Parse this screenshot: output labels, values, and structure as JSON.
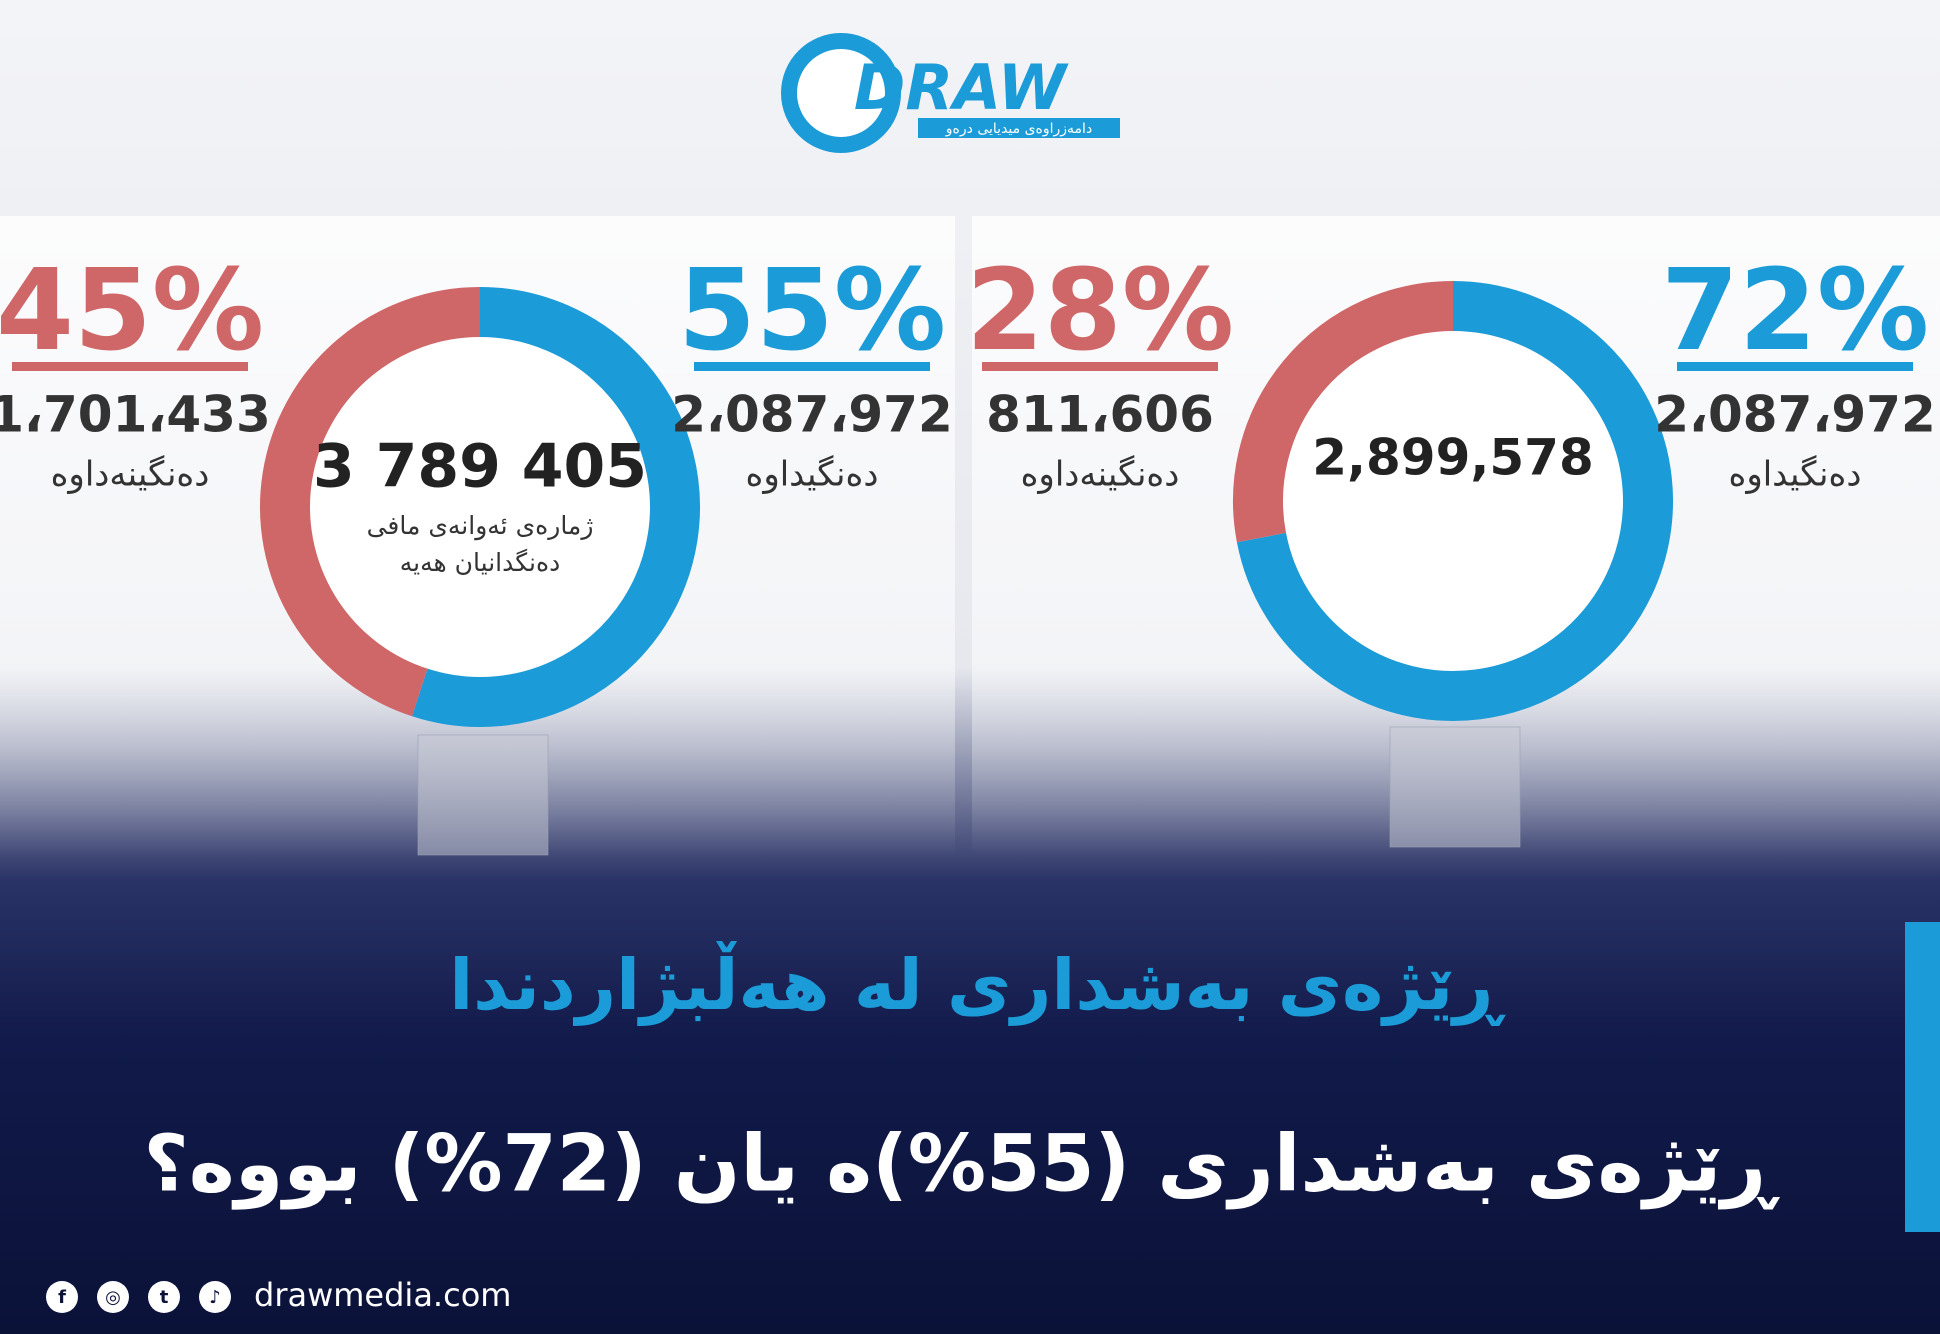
{
  "header": {
    "logo": "DRAW",
    "logo_subtitle": "دامەزراوەی میدیایی درەو"
  },
  "chart_data": [
    {
      "type": "pie",
      "donut": true,
      "categories": [
        "دەنگیداوە",
        "دەنگینەداوە"
      ],
      "values": [
        55,
        45
      ],
      "value_labels": [
        "55%",
        "45%"
      ],
      "count_labels": [
        "2،087،972",
        "1،701،433"
      ],
      "colors": [
        "#1b9bd7",
        "#cf6667"
      ],
      "center_label": "3 789 405",
      "center_caption": [
        "ژمارەی ئەوانەی مافی",
        "دەنگدانیان هەیە"
      ]
    },
    {
      "type": "pie",
      "donut": true,
      "categories": [
        "دەنگیداوە",
        "دەنگینەداوە"
      ],
      "values": [
        72,
        28
      ],
      "value_labels": [
        "72%",
        "28%"
      ],
      "count_labels": [
        "2،087،972",
        "811،606"
      ],
      "colors": [
        "#1b9bd7",
        "#cf6667"
      ],
      "center_label": "2,899,578"
    }
  ],
  "headline": "ڕێژەی بەشداری لە هەڵبژاردندا",
  "question": "ڕێژەی بەشداری (55%)ە یان (72%) بووە؟",
  "footer": {
    "website": "drawmedia.com"
  }
}
